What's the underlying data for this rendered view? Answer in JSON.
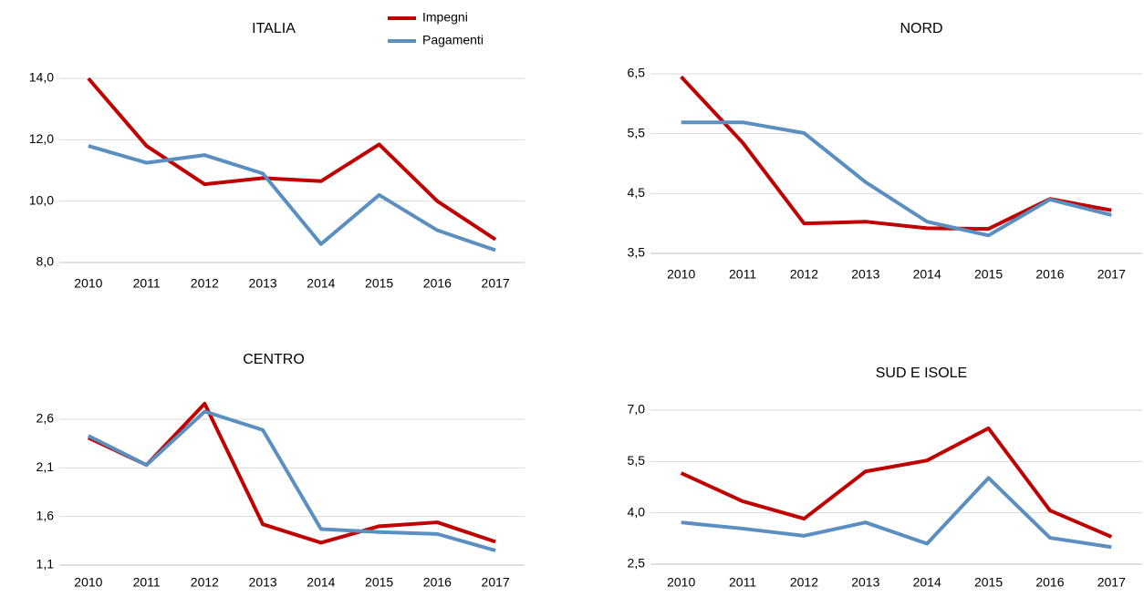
{
  "chart_data": [
    {
      "type": "line",
      "title": "ITALIA",
      "categories": [
        "2010",
        "2011",
        "2012",
        "2013",
        "2014",
        "2015",
        "2016",
        "2017"
      ],
      "series": [
        {
          "name": "Impegni",
          "color": "#c00000",
          "values": [
            14.0,
            11.8,
            10.55,
            10.75,
            10.65,
            11.85,
            10.0,
            8.75
          ]
        },
        {
          "name": "Pagamenti",
          "color": "#5b8fbf",
          "values": [
            11.8,
            11.25,
            11.5,
            10.9,
            8.6,
            10.2,
            9.05,
            8.4
          ]
        }
      ],
      "ylim": [
        8,
        14
      ],
      "yticks": [
        {
          "value": 8,
          "label": "8,0"
        },
        {
          "value": 10,
          "label": "10,0"
        },
        {
          "value": 12,
          "label": "12,0"
        },
        {
          "value": 14,
          "label": "14,0"
        }
      ],
      "grid": true
    },
    {
      "type": "line",
      "title": "NORD",
      "categories": [
        "2010",
        "2011",
        "2012",
        "2013",
        "2014",
        "2015",
        "2016",
        "2017"
      ],
      "series": [
        {
          "color": "#c00000",
          "values": [
            6.45,
            5.35,
            4.0,
            4.03,
            3.92,
            3.91,
            4.41,
            4.22
          ]
        },
        {
          "color": "#5b8fbf",
          "values": [
            5.69,
            5.69,
            5.51,
            4.69,
            4.03,
            3.8,
            4.4,
            4.14
          ]
        }
      ],
      "ylim": [
        3.5,
        6.5
      ],
      "yticks": [
        {
          "value": 3.5,
          "label": "3,5"
        },
        {
          "value": 4.5,
          "label": "4,5"
        },
        {
          "value": 5.5,
          "label": "5,5"
        },
        {
          "value": 6.5,
          "label": "6,5"
        }
      ],
      "grid": true
    },
    {
      "type": "line",
      "title": "CENTRO",
      "categories": [
        "2010",
        "2011",
        "2012",
        "2013",
        "2014",
        "2015",
        "2016",
        "2017"
      ],
      "series": [
        {
          "color": "#c00000",
          "values": [
            2.41,
            2.13,
            2.76,
            1.52,
            1.33,
            1.5,
            1.54,
            1.34
          ]
        },
        {
          "color": "#5b8fbf",
          "values": [
            2.43,
            2.13,
            2.68,
            2.49,
            1.47,
            1.44,
            1.42,
            1.25
          ]
        }
      ],
      "ylim": [
        1.1,
        2.6
      ],
      "yticks": [
        {
          "value": 1.1,
          "label": "1,1"
        },
        {
          "value": 1.6,
          "label": "1,6"
        },
        {
          "value": 2.1,
          "label": "2,1"
        },
        {
          "value": 2.6,
          "label": "2,6"
        }
      ],
      "grid": true
    },
    {
      "type": "line",
      "title": "SUD E ISOLE",
      "categories": [
        "2010",
        "2011",
        "2012",
        "2013",
        "2014",
        "2015",
        "2016",
        "2017"
      ],
      "series": [
        {
          "color": "#c00000",
          "values": [
            5.16,
            4.34,
            3.83,
            5.21,
            5.53,
            6.47,
            4.07,
            3.3
          ]
        },
        {
          "color": "#5b8fbf",
          "values": [
            3.72,
            3.54,
            3.33,
            3.72,
            3.1,
            5.02,
            3.27,
            3.0
          ]
        }
      ],
      "ylim": [
        2.5,
        7
      ],
      "yticks": [
        {
          "value": 2.5,
          "label": "2,5"
        },
        {
          "value": 4,
          "label": "4,0"
        },
        {
          "value": 5.5,
          "label": "5,5"
        },
        {
          "value": 7,
          "label": "7,0"
        }
      ],
      "grid": true
    }
  ]
}
